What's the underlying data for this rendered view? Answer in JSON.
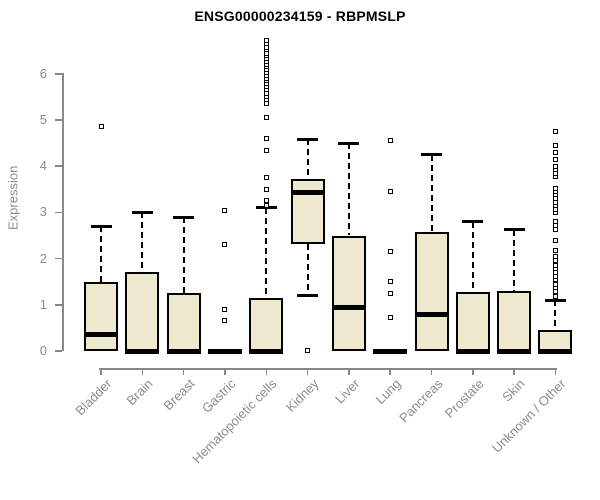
{
  "chart_data": {
    "type": "boxplot",
    "title": "ENSG00000234159 - RBPMSLP",
    "ylabel": "Expression",
    "xlabel": "",
    "ylim": [
      0,
      6.8
    ],
    "yticks": [
      0,
      1,
      2,
      3,
      4,
      5,
      6
    ],
    "grid": false,
    "legend": "none",
    "colors": {
      "box_fill": "#EDE8CE",
      "box_border": "#000000",
      "median": "#000000",
      "axis": "#888888",
      "tick_text": "#8C8C8C",
      "title_text": "#000000"
    },
    "categories": [
      "Bladder",
      "Brain",
      "Breast",
      "Gastric",
      "Hematopoietic cells",
      "Kidney",
      "Liver",
      "Lung",
      "Pancreas",
      "Prostate",
      "Skin",
      "Unknown / Other"
    ],
    "series": [
      {
        "label": "Bladder",
        "whisker_low": 0,
        "q1": 0,
        "median": 0.35,
        "q3": 1.5,
        "whisker_high": 2.7,
        "outliers": [
          4.85
        ]
      },
      {
        "label": "Brain",
        "whisker_low": 0,
        "q1": 0,
        "median": 0,
        "q3": 1.7,
        "whisker_high": 3.0,
        "outliers": []
      },
      {
        "label": "Breast",
        "whisker_low": 0,
        "q1": 0,
        "median": 0,
        "q3": 1.25,
        "whisker_high": 2.9,
        "outliers": []
      },
      {
        "label": "Gastric",
        "whisker_low": 0,
        "q1": 0,
        "median": 0,
        "q3": 0,
        "whisker_high": 0,
        "outliers": [
          0.65,
          0.9,
          2.3,
          3.05
        ]
      },
      {
        "label": "Hematopoietic cells",
        "whisker_low": 0,
        "q1": 0,
        "median": 0,
        "q3": 1.15,
        "whisker_high": 3.1,
        "outliers": [
          3.15,
          3.25,
          3.5,
          3.75,
          4.35,
          4.6,
          5.05,
          5.35,
          5.45,
          5.5,
          5.58,
          5.65,
          5.72,
          5.78,
          5.85,
          5.9,
          5.97,
          6.03,
          6.1,
          6.15,
          6.2,
          6.27,
          6.33,
          6.4,
          6.45,
          6.52,
          6.58,
          6.65,
          6.72
        ]
      },
      {
        "label": "Kidney",
        "whisker_low": 1.2,
        "q1": 2.32,
        "median": 3.42,
        "q3": 3.72,
        "whisker_high": 4.58,
        "outliers": [
          0.02
        ]
      },
      {
        "label": "Liver",
        "whisker_low": 0,
        "q1": 0,
        "median": 0.95,
        "q3": 2.5,
        "whisker_high": 4.5,
        "outliers": []
      },
      {
        "label": "Lung",
        "whisker_low": 0,
        "q1": 0,
        "median": 0,
        "q3": 0,
        "whisker_high": 0,
        "outliers": [
          0.72,
          1.25,
          1.5,
          2.15,
          3.45,
          4.55
        ]
      },
      {
        "label": "Pancreas",
        "whisker_low": 0,
        "q1": 0,
        "median": 0.8,
        "q3": 2.57,
        "whisker_high": 4.25,
        "outliers": []
      },
      {
        "label": "Prostate",
        "whisker_low": 0,
        "q1": 0,
        "median": 0,
        "q3": 1.27,
        "whisker_high": 2.8,
        "outliers": []
      },
      {
        "label": "Skin",
        "whisker_low": 0,
        "q1": 0,
        "median": 0,
        "q3": 1.3,
        "whisker_high": 2.62,
        "outliers": []
      },
      {
        "label": "Unknown / Other",
        "whisker_low": 0,
        "q1": 0,
        "median": 0,
        "q3": 0.45,
        "whisker_high": 1.1,
        "outliers": [
          1.18,
          1.28,
          1.38,
          1.45,
          1.55,
          1.62,
          1.7,
          1.78,
          1.85,
          1.95,
          2.05,
          2.18,
          2.4,
          2.62,
          2.72,
          2.8,
          3.0,
          3.07,
          3.14,
          3.22,
          3.3,
          3.38,
          3.45,
          3.52,
          3.78,
          3.85,
          3.92,
          4.0,
          4.15,
          4.3,
          4.45,
          4.75
        ]
      }
    ]
  }
}
